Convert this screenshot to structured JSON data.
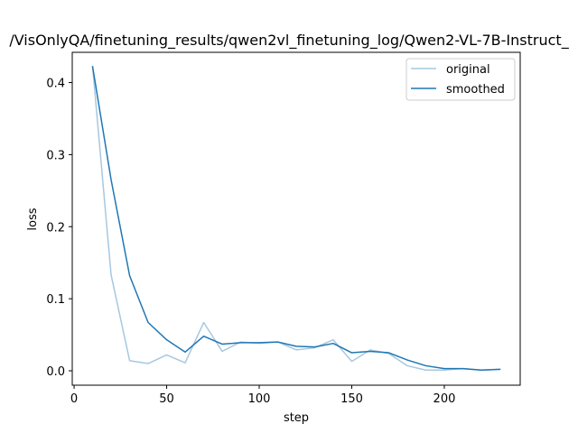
{
  "chart_data": {
    "type": "line",
    "title": "/VisOnlyQA/finetuning_results/qwen2vl_finetuning_log/Qwen2-VL-7B-Instruct_",
    "xlabel": "step",
    "ylabel": "loss",
    "xlim": [
      -1,
      241
    ],
    "ylim": [
      -0.02,
      0.442
    ],
    "xticks": [
      0,
      50,
      100,
      150,
      200
    ],
    "yticks": [
      0.0,
      0.1,
      0.2,
      0.3,
      0.4
    ],
    "ytick_labels": [
      "0.0",
      "0.1",
      "0.2",
      "0.3",
      "0.4"
    ],
    "grid": false,
    "legend_position": "top-right",
    "x": [
      10,
      20,
      30,
      40,
      50,
      60,
      70,
      80,
      90,
      100,
      110,
      120,
      130,
      140,
      150,
      160,
      170,
      180,
      190,
      200,
      210,
      220,
      230
    ],
    "series": [
      {
        "name": "original",
        "color": "#a6c8e0",
        "values": [
          0.422,
          0.133,
          0.014,
          0.01,
          0.022,
          0.011,
          0.067,
          0.027,
          0.04,
          0.038,
          0.04,
          0.029,
          0.032,
          0.043,
          0.013,
          0.029,
          0.024,
          0.007,
          0.001,
          0.001,
          0.003,
          0.001,
          0.002
        ]
      },
      {
        "name": "smoothed",
        "color": "#1f77b4",
        "values": [
          0.422,
          0.265,
          0.132,
          0.067,
          0.043,
          0.026,
          0.048,
          0.037,
          0.039,
          0.039,
          0.04,
          0.034,
          0.033,
          0.038,
          0.025,
          0.027,
          0.025,
          0.015,
          0.007,
          0.003,
          0.003,
          0.001,
          0.002
        ]
      }
    ]
  }
}
